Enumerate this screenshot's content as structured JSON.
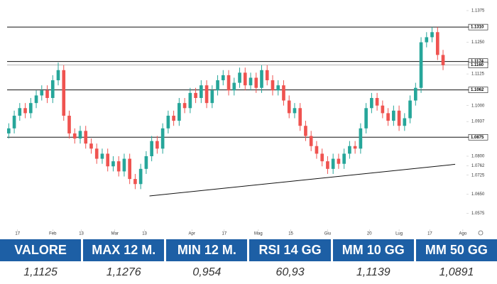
{
  "chart_data": {
    "type": "candlestick",
    "open": [
      1.089,
      1.091,
      1.096,
      1.099,
      1.097,
      1.101,
      1.104,
      1.106,
      1.103,
      1.11,
      1.114,
      1.096,
      1.089,
      1.087,
      1.09,
      1.085,
      1.083,
      1.079,
      1.081,
      1.076,
      1.078,
      1.074,
      1.079,
      1.071,
      1.069,
      1.075,
      1.08,
      1.086,
      1.083,
      1.091,
      1.096,
      1.094,
      1.101,
      1.099,
      1.105,
      1.103,
      1.108,
      1.101,
      1.106,
      1.11,
      1.112,
      1.106,
      1.109,
      1.113,
      1.108,
      1.111,
      1.107,
      1.114,
      1.11,
      1.106,
      1.108,
      1.102,
      1.097,
      1.099,
      1.092,
      1.088,
      1.084,
      1.081,
      1.078,
      1.075,
      1.079,
      1.077,
      1.081,
      1.084,
      1.083,
      1.091,
      1.099,
      1.103,
      1.1,
      1.097,
      1.094,
      1.098,
      1.092,
      1.095,
      1.102,
      1.107,
      1.125,
      1.127,
      1.129,
      1.12
    ],
    "high": [
      1.093,
      1.098,
      1.101,
      1.101,
      1.103,
      1.106,
      1.108,
      1.108,
      1.112,
      1.117,
      1.116,
      1.098,
      1.091,
      1.092,
      1.092,
      1.087,
      1.085,
      1.083,
      1.083,
      1.08,
      1.08,
      1.081,
      1.081,
      1.073,
      1.077,
      1.082,
      1.088,
      1.088,
      1.093,
      1.098,
      1.098,
      1.103,
      1.103,
      1.107,
      1.107,
      1.11,
      1.11,
      1.108,
      1.112,
      1.114,
      1.114,
      1.111,
      1.115,
      1.115,
      1.113,
      1.113,
      1.116,
      1.116,
      1.112,
      1.11,
      1.11,
      1.104,
      1.101,
      1.101,
      1.094,
      1.09,
      1.086,
      1.083,
      1.08,
      1.081,
      1.081,
      1.083,
      1.086,
      1.086,
      1.093,
      1.101,
      1.105,
      1.105,
      1.102,
      1.099,
      1.1,
      1.1,
      1.097,
      1.104,
      1.109,
      1.127,
      1.129,
      1.131,
      1.131,
      1.122
    ],
    "low": [
      1.087,
      1.089,
      1.094,
      1.095,
      1.095,
      1.099,
      1.102,
      1.101,
      1.101,
      1.108,
      1.094,
      1.087,
      1.085,
      1.085,
      1.083,
      1.081,
      1.077,
      1.077,
      1.074,
      1.074,
      1.072,
      1.072,
      1.069,
      1.067,
      1.067,
      1.073,
      1.078,
      1.081,
      1.081,
      1.089,
      1.092,
      1.092,
      1.097,
      1.097,
      1.101,
      1.101,
      1.099,
      1.099,
      1.104,
      1.108,
      1.104,
      1.104,
      1.107,
      1.106,
      1.106,
      1.105,
      1.105,
      1.108,
      1.104,
      1.104,
      1.1,
      1.095,
      1.095,
      1.09,
      1.086,
      1.082,
      1.079,
      1.076,
      1.073,
      1.073,
      1.075,
      1.075,
      1.079,
      1.081,
      1.081,
      1.089,
      1.097,
      1.098,
      1.095,
      1.092,
      1.092,
      1.09,
      1.09,
      1.093,
      1.1,
      1.105,
      1.123,
      1.125,
      1.118,
      1.114
    ],
    "close": [
      1.091,
      1.096,
      1.099,
      1.097,
      1.101,
      1.104,
      1.106,
      1.103,
      1.11,
      1.114,
      1.096,
      1.089,
      1.087,
      1.09,
      1.085,
      1.083,
      1.079,
      1.081,
      1.076,
      1.078,
      1.074,
      1.079,
      1.071,
      1.069,
      1.075,
      1.08,
      1.086,
      1.083,
      1.091,
      1.096,
      1.094,
      1.101,
      1.099,
      1.105,
      1.103,
      1.108,
      1.101,
      1.106,
      1.11,
      1.112,
      1.106,
      1.109,
      1.113,
      1.108,
      1.111,
      1.107,
      1.114,
      1.11,
      1.106,
      1.108,
      1.102,
      1.097,
      1.099,
      1.092,
      1.088,
      1.084,
      1.081,
      1.078,
      1.075,
      1.079,
      1.077,
      1.081,
      1.084,
      1.083,
      1.091,
      1.099,
      1.103,
      1.1,
      1.097,
      1.094,
      1.098,
      1.092,
      1.095,
      1.102,
      1.107,
      1.125,
      1.127,
      1.129,
      1.12,
      1.116
    ],
    "up_color": "#26a69a",
    "down_color": "#ef5350",
    "xlim": [
      -0.3,
      83
    ],
    "xticks": [
      {
        "value": 1.6,
        "label": "17"
      },
      {
        "value": 8.0,
        "label": "Feb"
      },
      {
        "value": 13.2,
        "label": "13"
      },
      {
        "value": 19.3,
        "label": "Mar"
      },
      {
        "value": 24.7,
        "label": "13"
      },
      {
        "value": 33.3,
        "label": "Apr"
      },
      {
        "value": 39.2,
        "label": "17"
      },
      {
        "value": 45.4,
        "label": "Mag"
      },
      {
        "value": 51.3,
        "label": "15"
      },
      {
        "value": 58.0,
        "label": "Giu"
      },
      {
        "value": 65.6,
        "label": "20"
      },
      {
        "value": 71.0,
        "label": "Lug"
      },
      {
        "value": 76.6,
        "label": "17"
      },
      {
        "value": 82.6,
        "label": "Ago"
      }
    ],
    "ylim": [
      1.0514,
      1.1417
    ],
    "yticks": [
      1.1375,
      {
        "value": 1.125,
        "label": "1.1250"
      },
      1.1125,
      {
        "value": 1.1,
        "label": "1.1000"
      },
      1.0937,
      {
        "value": 1.08,
        "label": "1.0800"
      },
      1.0762,
      1.0725,
      {
        "value": 1.065,
        "label": "1.0650"
      },
      1.0575
    ],
    "levels": [
      {
        "value": 1.131,
        "label": "1.1310"
      },
      {
        "value": 1.1174,
        "label": "1.1174"
      },
      {
        "value": 1.116,
        "label": "1.1160"
      },
      {
        "value": 1.1062,
        "label": "1.1062"
      },
      {
        "value": 1.0875,
        "label": "1.0875"
      }
    ],
    "trendline": {
      "x": [
        25.6,
        81.2
      ],
      "y": [
        1.0643,
        1.0768
      ]
    }
  },
  "table": {
    "headers": [
      "VALORE",
      "MAX 12 M.",
      "MIN 12 M.",
      "RSI 14 GG",
      "MM 10 GG",
      "MM 50 GG"
    ],
    "values": [
      "1,1125",
      "1,1276",
      "0,954",
      "60,93",
      "1,1139",
      "1,0891"
    ]
  }
}
